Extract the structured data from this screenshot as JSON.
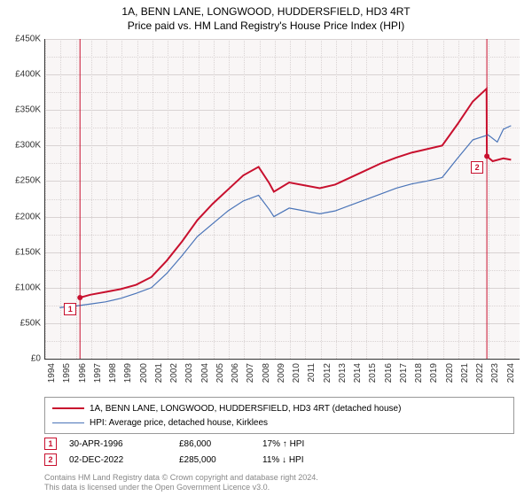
{
  "title_line1": "1A, BENN LANE, LONGWOOD, HUDDERSFIELD, HD3 4RT",
  "title_line2": "Price paid vs. HM Land Registry's House Price Index (HPI)",
  "chart": {
    "type": "line",
    "plot_bg": "#f9f6f6",
    "grid_color": "#d9d3d3",
    "y_axis": {
      "min": 0,
      "max": 450000,
      "tick_step": 50000,
      "labels": [
        "£0",
        "£50K",
        "£100K",
        "£150K",
        "£200K",
        "£250K",
        "£300K",
        "£350K",
        "£400K",
        "£450K"
      ]
    },
    "x_axis": {
      "min": 1994,
      "max": 2025,
      "years": [
        1994,
        1995,
        1996,
        1997,
        1998,
        1999,
        2000,
        2001,
        2002,
        2003,
        2004,
        2005,
        2006,
        2007,
        2008,
        2009,
        2010,
        2011,
        2012,
        2013,
        2014,
        2015,
        2016,
        2017,
        2018,
        2019,
        2020,
        2021,
        2022,
        2023,
        2024
      ]
    },
    "series": [
      {
        "name": "1A, BENN LANE, LONGWOOD, HUDDERSFIELD, HD3 4RT (detached house)",
        "color": "#c8102e",
        "width": 2,
        "data": [
          [
            1996.33,
            86000
          ],
          [
            1997,
            90000
          ],
          [
            1998,
            94000
          ],
          [
            1999,
            98000
          ],
          [
            2000,
            104000
          ],
          [
            2001,
            115000
          ],
          [
            2002,
            138000
          ],
          [
            2003,
            165000
          ],
          [
            2004,
            195000
          ],
          [
            2005,
            218000
          ],
          [
            2006,
            238000
          ],
          [
            2007,
            258000
          ],
          [
            2008,
            270000
          ],
          [
            2008.7,
            247000
          ],
          [
            2009,
            235000
          ],
          [
            2010,
            248000
          ],
          [
            2011,
            244000
          ],
          [
            2012,
            240000
          ],
          [
            2013,
            245000
          ],
          [
            2014,
            255000
          ],
          [
            2015,
            265000
          ],
          [
            2016,
            275000
          ],
          [
            2017,
            283000
          ],
          [
            2018,
            290000
          ],
          [
            2019,
            295000
          ],
          [
            2020,
            300000
          ],
          [
            2021,
            330000
          ],
          [
            2022,
            362000
          ],
          [
            2022.9,
            380000
          ],
          [
            2022.92,
            285000
          ],
          [
            2023.3,
            278000
          ],
          [
            2024,
            282000
          ],
          [
            2024.5,
            280000
          ]
        ]
      },
      {
        "name": "HPI: Average price, detached house, Kirklees",
        "color": "#4a74b8",
        "width": 1.2,
        "data": [
          [
            1995,
            72000
          ],
          [
            1996,
            74000
          ],
          [
            1997,
            77000
          ],
          [
            1998,
            80000
          ],
          [
            1999,
            85000
          ],
          [
            2000,
            92000
          ],
          [
            2001,
            100000
          ],
          [
            2002,
            120000
          ],
          [
            2003,
            145000
          ],
          [
            2004,
            172000
          ],
          [
            2005,
            190000
          ],
          [
            2006,
            208000
          ],
          [
            2007,
            222000
          ],
          [
            2008,
            230000
          ],
          [
            2008.7,
            210000
          ],
          [
            2009,
            200000
          ],
          [
            2010,
            212000
          ],
          [
            2011,
            208000
          ],
          [
            2012,
            204000
          ],
          [
            2013,
            208000
          ],
          [
            2014,
            216000
          ],
          [
            2015,
            224000
          ],
          [
            2016,
            232000
          ],
          [
            2017,
            240000
          ],
          [
            2018,
            246000
          ],
          [
            2019,
            250000
          ],
          [
            2020,
            255000
          ],
          [
            2021,
            282000
          ],
          [
            2022,
            308000
          ],
          [
            2023,
            315000
          ],
          [
            2023.6,
            305000
          ],
          [
            2024,
            323000
          ],
          [
            2024.5,
            328000
          ]
        ]
      }
    ],
    "markers": [
      {
        "label": "1",
        "x": 1996.33,
        "y": 86000
      },
      {
        "label": "2",
        "x": 2022.92,
        "y": 285000
      }
    ]
  },
  "legend": {
    "items": [
      {
        "color": "#c8102e",
        "width": 2,
        "label": "1A, BENN LANE, LONGWOOD, HUDDERSFIELD, HD3 4RT (detached house)"
      },
      {
        "color": "#4a74b8",
        "width": 1.2,
        "label": "HPI: Average price, detached house, Kirklees"
      }
    ]
  },
  "sales": [
    {
      "num": "1",
      "date": "30-APR-1996",
      "price": "£86,000",
      "diff": "17% ↑ HPI"
    },
    {
      "num": "2",
      "date": "02-DEC-2022",
      "price": "£285,000",
      "diff": "11% ↓ HPI"
    }
  ],
  "footer_line1": "Contains HM Land Registry data © Crown copyright and database right 2024.",
  "footer_line2": "This data is licensed under the Open Government Licence v3.0."
}
